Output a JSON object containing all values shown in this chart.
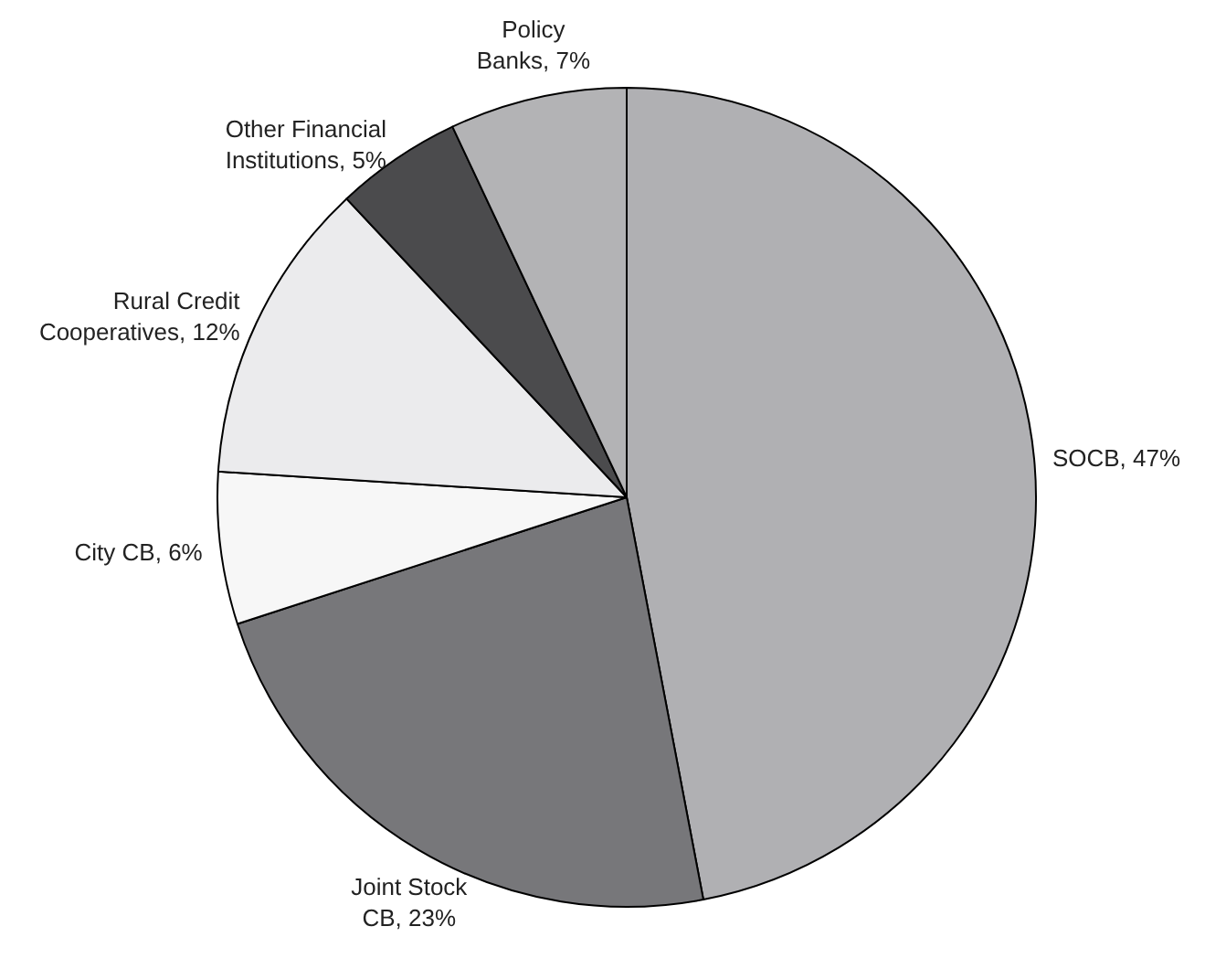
{
  "chart_data": {
    "type": "pie",
    "categories": [
      "SOCB",
      "Joint Stock CB",
      "City CB",
      "Rural Credit Cooperatives",
      "Other Financial Institutions",
      "Policy Banks"
    ],
    "values": [
      47,
      23,
      6,
      12,
      5,
      7
    ],
    "value_labels": [
      "47%",
      "23%",
      "6%",
      "12%",
      "5%",
      "7%"
    ],
    "colors": [
      "#b0b0b3",
      "#77777a",
      "#f7f7f7",
      "#ebebed",
      "#4b4b4d",
      "#b3b3b5"
    ]
  }
}
